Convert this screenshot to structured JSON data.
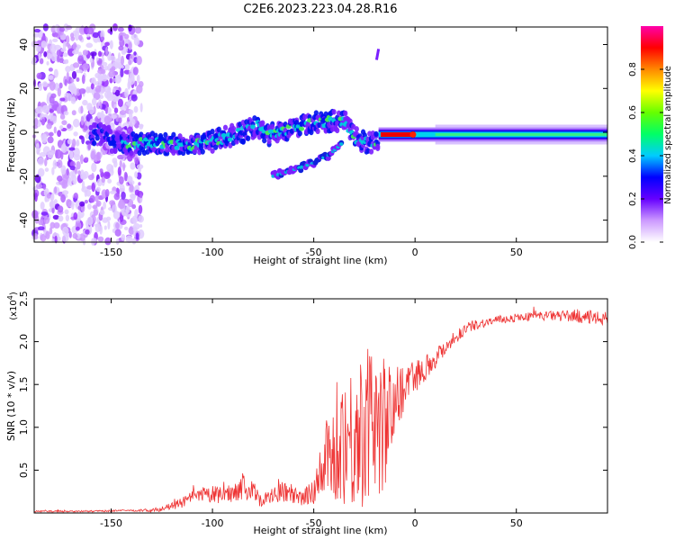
{
  "title": "C2E6.2023.223.04.28.R16",
  "chart_data": [
    {
      "type": "heatmap",
      "name": "spectrogram",
      "xlabel": "Height of straight line (km)",
      "ylabel": "Frequency (Hz)",
      "xlim": [
        -188,
        95
      ],
      "ylim": [
        -50,
        48
      ],
      "xticks": [
        -150,
        -100,
        -50,
        0,
        50
      ],
      "yticks": [
        -40,
        -20,
        0,
        20,
        40
      ],
      "ridge": [
        {
          "x": -150,
          "y": -5
        },
        {
          "x": -130,
          "y": -5
        },
        {
          "x": -110,
          "y": -6
        },
        {
          "x": -100,
          "y": -4
        },
        {
          "x": -85,
          "y": 0
        },
        {
          "x": -78,
          "y": 3
        },
        {
          "x": -72,
          "y": -1
        },
        {
          "x": -60,
          "y": 2
        },
        {
          "x": -48,
          "y": 5
        },
        {
          "x": -35,
          "y": 5
        },
        {
          "x": -28,
          "y": -4
        },
        {
          "x": -20,
          "y": -5
        },
        {
          "x": -15,
          "y": -2
        },
        {
          "x": 0,
          "y": -1
        },
        {
          "x": 20,
          "y": -1
        },
        {
          "x": 50,
          "y": -1
        },
        {
          "x": 95,
          "y": -1
        }
      ],
      "branch": [
        {
          "x": -70,
          "y": -20
        },
        {
          "x": -60,
          "y": -17
        },
        {
          "x": -50,
          "y": -14
        },
        {
          "x": -42,
          "y": -10
        },
        {
          "x": -36,
          "y": -5
        }
      ],
      "streak": [
        {
          "x": -19,
          "y": 33
        },
        {
          "x": -18,
          "y": 38
        }
      ],
      "colorbar": {
        "label": "Normalized spectral amplitude",
        "range": [
          0.0,
          1.0
        ],
        "ticks": [
          "0.0",
          "0.2",
          "0.4",
          "0.6",
          "0.8"
        ],
        "tick_values": [
          0.0,
          0.2,
          0.4,
          0.6,
          0.8
        ],
        "colors": [
          "#ffffff",
          "#cc99ff",
          "#6600ff",
          "#0000ff",
          "#00ccff",
          "#00ff66",
          "#66ff00",
          "#ffff00",
          "#ff8800",
          "#ff0000",
          "#ff00aa"
        ]
      }
    },
    {
      "type": "line",
      "name": "snr",
      "xlabel": "Height of straight line (km)",
      "ylabel": "SNR (10 * v/v)",
      "y_multiplier": "(x10",
      "y_multiplier_exp": "4",
      "y_multiplier_close": ")",
      "xlim": [
        -188,
        95
      ],
      "ylim": [
        0,
        2.5
      ],
      "xticks": [
        -150,
        -100,
        -50,
        0,
        50
      ],
      "yticks": [
        0.5,
        1.0,
        1.5,
        2.0,
        2.5
      ],
      "ytick_labels": [
        "0.5",
        "1.0",
        "1.5",
        "2.0",
        "2.5"
      ],
      "color": "#ee3333",
      "series": [
        {
          "name": "SNR",
          "x": [
            -188,
            -160,
            -140,
            -130,
            -125,
            -120,
            -115,
            -110,
            -105,
            -100,
            -95,
            -90,
            -85,
            -80,
            -75,
            -70,
            -65,
            -60,
            -55,
            -50,
            -45,
            -40,
            -35,
            -30,
            -25,
            -20,
            -15,
            -10,
            -5,
            0,
            5,
            10,
            15,
            20,
            25,
            30,
            40,
            50,
            60,
            70,
            80,
            90,
            95
          ],
          "y": [
            0.02,
            0.02,
            0.03,
            0.03,
            0.05,
            0.08,
            0.12,
            0.18,
            0.2,
            0.22,
            0.2,
            0.25,
            0.3,
            0.25,
            0.15,
            0.2,
            0.25,
            0.2,
            0.15,
            0.3,
            0.5,
            0.7,
            0.9,
            0.85,
            1.0,
            1.1,
            1.0,
            1.3,
            1.5,
            1.6,
            1.7,
            1.8,
            1.95,
            2.05,
            2.15,
            2.2,
            2.25,
            2.28,
            2.3,
            2.3,
            2.3,
            2.27,
            2.27
          ],
          "noise": [
            0.01,
            0.01,
            0.01,
            0.02,
            0.03,
            0.04,
            0.06,
            0.08,
            0.1,
            0.1,
            0.1,
            0.12,
            0.14,
            0.12,
            0.1,
            0.1,
            0.12,
            0.1,
            0.1,
            0.2,
            0.4,
            0.6,
            0.8,
            0.9,
            0.9,
            0.9,
            0.8,
            0.4,
            0.3,
            0.2,
            0.15,
            0.12,
            0.1,
            0.08,
            0.07,
            0.06,
            0.05,
            0.05,
            0.05,
            0.06,
            0.08,
            0.08,
            0.08
          ]
        }
      ]
    }
  ]
}
